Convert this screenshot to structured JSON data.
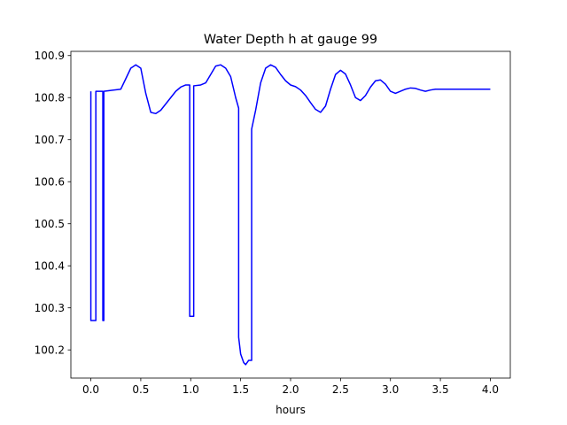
{
  "chart_data": {
    "type": "line",
    "title": "Water Depth h at gauge 99",
    "xlabel": "hours",
    "ylabel": "",
    "xlim": [
      -0.2,
      4.2
    ],
    "ylim": [
      100.133,
      100.91
    ],
    "grid": false,
    "x_ticks": [
      0.0,
      0.5,
      1.0,
      1.5,
      2.0,
      2.5,
      3.0,
      3.5,
      4.0
    ],
    "x_tick_labels": [
      "0.0",
      "0.5",
      "1.0",
      "1.5",
      "2.0",
      "2.5",
      "3.0",
      "3.5",
      "4.0"
    ],
    "y_ticks": [
      100.2,
      100.3,
      100.4,
      100.5,
      100.6,
      100.7,
      100.8,
      100.9
    ],
    "y_tick_labels": [
      "100.2",
      "100.3",
      "100.4",
      "100.5",
      "100.6",
      "100.7",
      "100.8",
      "100.9"
    ],
    "series": [
      {
        "color": "#0000ff",
        "x": [
          0.0,
          0.0,
          0.05,
          0.05,
          0.12,
          0.12,
          0.13,
          0.13,
          0.2,
          0.3,
          0.35,
          0.4,
          0.45,
          0.5,
          0.55,
          0.6,
          0.65,
          0.7,
          0.75,
          0.8,
          0.85,
          0.9,
          0.95,
          0.99,
          0.99,
          1.03,
          1.03,
          1.1,
          1.15,
          1.2,
          1.25,
          1.3,
          1.35,
          1.4,
          1.45,
          1.48,
          1.48,
          1.5,
          1.53,
          1.55,
          1.58,
          1.61,
          1.61,
          1.65,
          1.7,
          1.75,
          1.8,
          1.85,
          1.9,
          1.95,
          2.0,
          2.05,
          2.1,
          2.15,
          2.2,
          2.25,
          2.3,
          2.35,
          2.4,
          2.45,
          2.5,
          2.55,
          2.6,
          2.65,
          2.7,
          2.75,
          2.8,
          2.85,
          2.9,
          2.95,
          3.0,
          3.05,
          3.1,
          3.15,
          3.2,
          3.25,
          3.3,
          3.35,
          3.4,
          3.45,
          3.5,
          3.55,
          3.6,
          3.65,
          3.7,
          3.75,
          3.8,
          3.85,
          3.9,
          3.95,
          4.0
        ],
        "y": [
          100.815,
          100.27,
          100.27,
          100.815,
          100.815,
          100.27,
          100.27,
          100.815,
          100.817,
          100.82,
          100.845,
          100.87,
          100.878,
          100.87,
          100.81,
          100.765,
          100.762,
          100.77,
          100.785,
          100.8,
          100.815,
          100.825,
          100.83,
          100.83,
          100.28,
          100.28,
          100.828,
          100.83,
          100.835,
          100.855,
          100.875,
          100.878,
          100.87,
          100.85,
          100.8,
          100.775,
          100.23,
          100.19,
          100.17,
          100.165,
          100.175,
          100.175,
          100.725,
          100.77,
          100.835,
          100.87,
          100.878,
          100.872,
          100.855,
          100.84,
          100.83,
          100.826,
          100.818,
          100.805,
          100.788,
          100.772,
          100.765,
          100.78,
          100.82,
          100.855,
          100.865,
          100.856,
          100.83,
          100.8,
          100.793,
          100.805,
          100.825,
          100.84,
          100.842,
          100.832,
          100.815,
          100.81,
          100.815,
          100.82,
          100.823,
          100.822,
          100.818,
          100.815,
          100.818,
          100.82,
          100.82,
          100.82,
          100.82,
          100.82,
          100.82,
          100.82,
          100.82,
          100.82,
          100.82,
          100.82,
          100.82
        ]
      }
    ]
  }
}
